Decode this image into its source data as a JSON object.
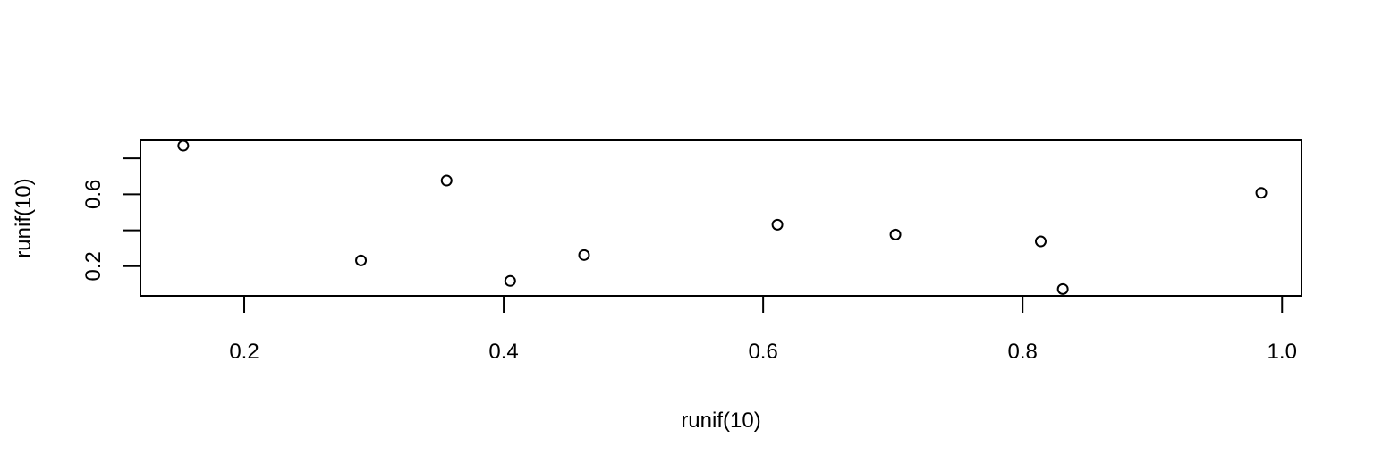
{
  "chart_data": {
    "type": "scatter",
    "title": "",
    "xlabel": "runif(10)",
    "ylabel": "runif(10)",
    "xlim": [
      0.12,
      1.015
    ],
    "ylim": [
      0.035,
      0.9
    ],
    "x_ticks": [
      0.2,
      0.4,
      0.6,
      0.8,
      1.0
    ],
    "x_tick_labels": [
      "0.2",
      "0.4",
      "0.6",
      "0.8",
      "1.0"
    ],
    "y_ticks": [
      0.2,
      0.4,
      0.6,
      0.8
    ],
    "y_tick_labels": [
      "0.2",
      "",
      "0.6",
      ""
    ],
    "grid": false,
    "marker": "open-circle",
    "points": [
      {
        "x": 0.153,
        "y": 0.87
      },
      {
        "x": 0.356,
        "y": 0.676
      },
      {
        "x": 0.29,
        "y": 0.232
      },
      {
        "x": 0.405,
        "y": 0.118
      },
      {
        "x": 0.462,
        "y": 0.262
      },
      {
        "x": 0.611,
        "y": 0.431
      },
      {
        "x": 0.702,
        "y": 0.376
      },
      {
        "x": 0.814,
        "y": 0.338
      },
      {
        "x": 0.831,
        "y": 0.073
      },
      {
        "x": 0.984,
        "y": 0.608
      }
    ]
  }
}
